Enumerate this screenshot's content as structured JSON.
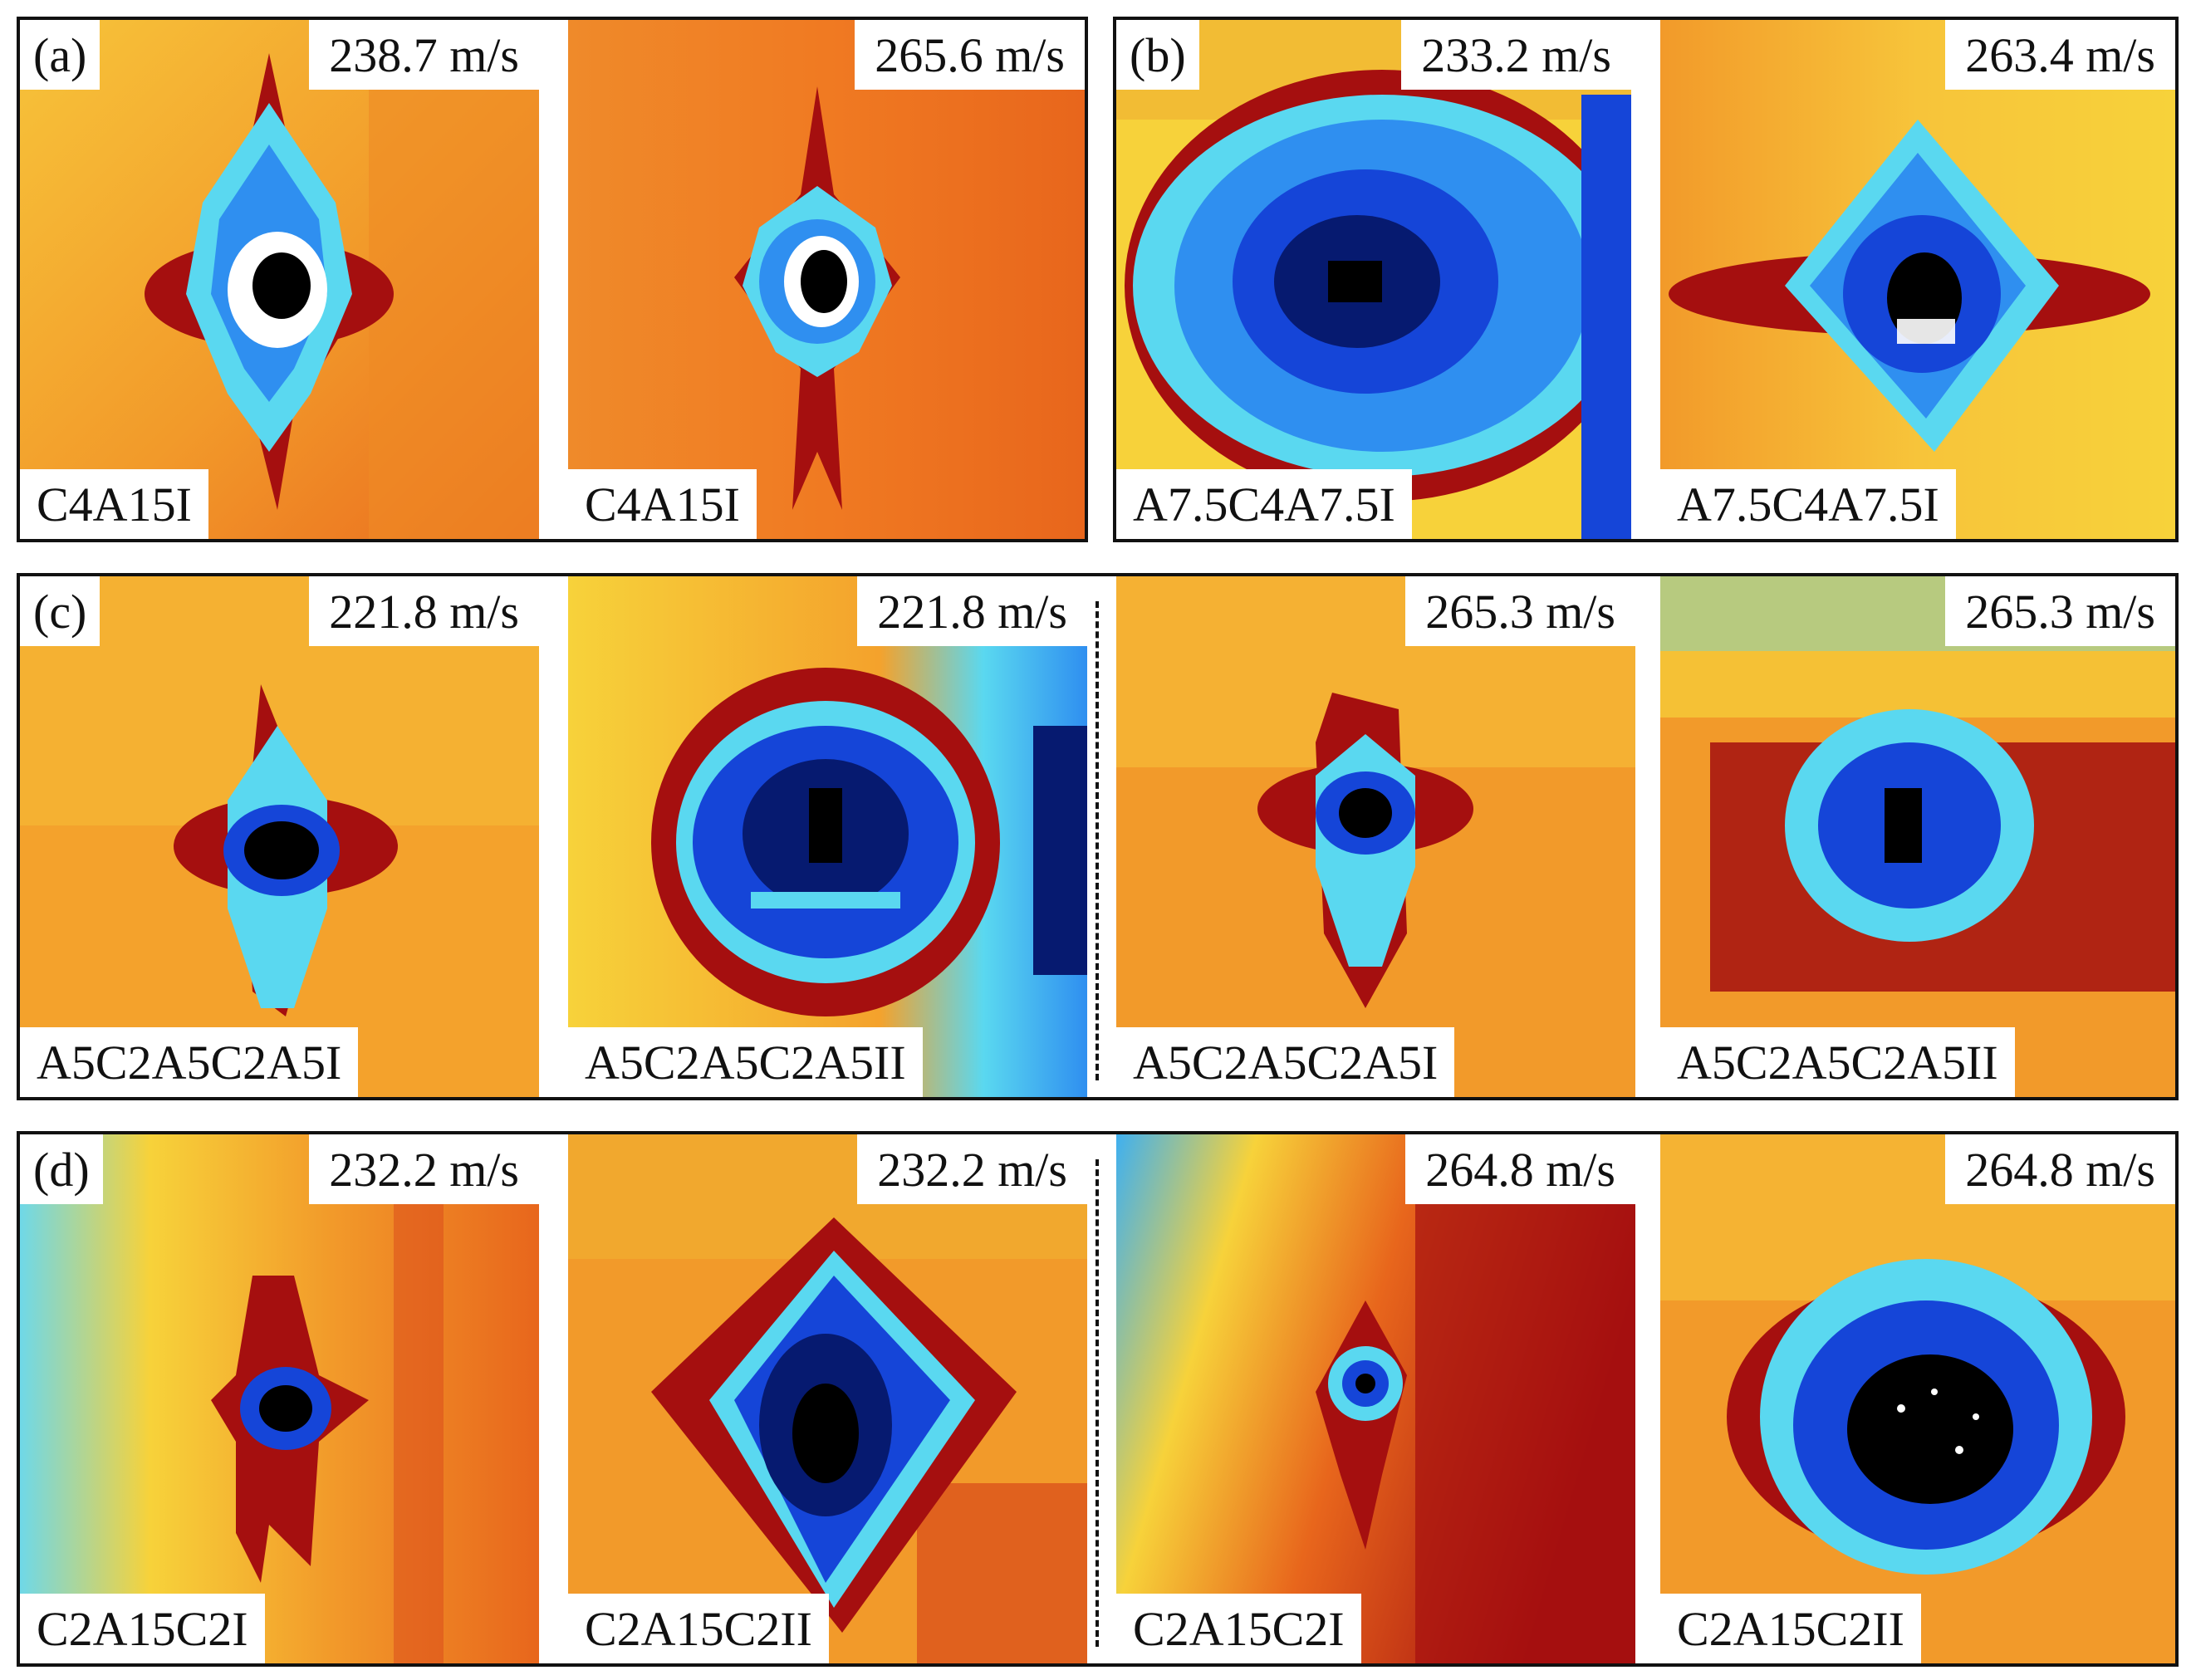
{
  "groups": [
    {
      "tag": "(a)",
      "panels": [
        {
          "speed": "238.7 m/s",
          "specimen": "C4A15I"
        },
        {
          "speed": "265.6 m/s",
          "specimen": "C4A15I"
        }
      ]
    },
    {
      "tag": "(b)",
      "panels": [
        {
          "speed": "233.2 m/s",
          "specimen": "A7.5C4A7.5I"
        },
        {
          "speed": "263.4 m/s",
          "specimen": "A7.5C4A7.5I"
        }
      ]
    },
    {
      "tag": "(c)",
      "panels": [
        {
          "speed": "221.8 m/s",
          "specimen": "A5C2A5C2A5I"
        },
        {
          "speed": "221.8 m/s",
          "specimen": "A5C2A5C2A5II"
        },
        {
          "speed": "265.3 m/s",
          "specimen": "A5C2A5C2A5I"
        },
        {
          "speed": "265.3 m/s",
          "specimen": "A5C2A5C2A5II"
        }
      ]
    },
    {
      "tag": "(d)",
      "panels": [
        {
          "speed": "232.2 m/s",
          "specimen": "C2A15C2I"
        },
        {
          "speed": "232.2 m/s",
          "specimen": "C2A15C2II"
        },
        {
          "speed": "264.8 m/s",
          "specimen": "C2A15C2I"
        },
        {
          "speed": "264.8 m/s",
          "specimen": "C2A15C2II"
        }
      ]
    }
  ],
  "colormap": {
    "background_yellow": "#f7d23a",
    "background_orange": "#f07a22",
    "deep_red": "#a50f0f",
    "cyan": "#5ad8f0",
    "light_blue": "#2f8ff0",
    "blue": "#1545d8",
    "dark_blue": "#061a70",
    "core_black": "#000000",
    "core_white": "#ffffff"
  }
}
